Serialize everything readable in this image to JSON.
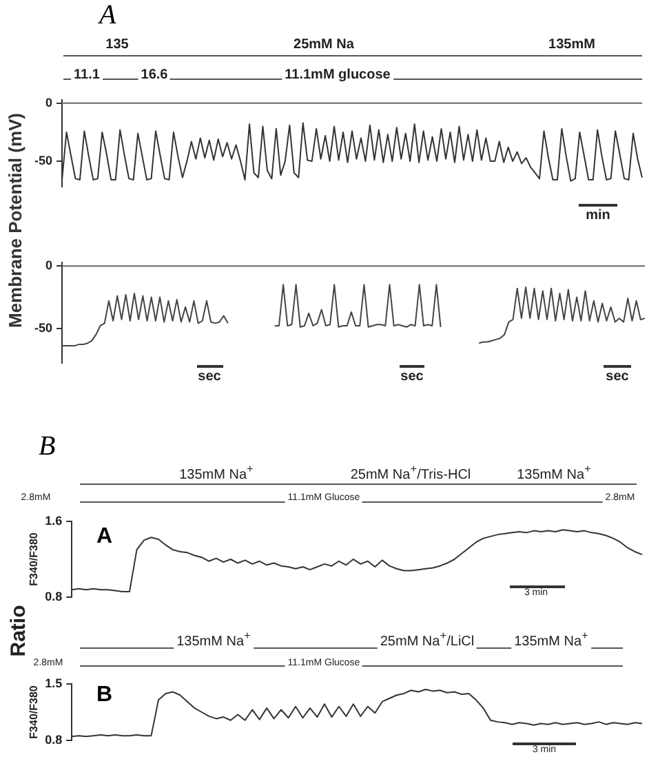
{
  "chart_data": [
    {
      "type": "line",
      "title": "A",
      "ylabel": "Membrane Potential (mV)",
      "annotations": [
        "135",
        "25mM Na",
        "135mM",
        "11.1",
        "16.6",
        "11.1mM glucose",
        "min"
      ],
      "ylim": [
        -72,
        3
      ],
      "yticks": [
        0,
        -50
      ],
      "tick_labels": "y",
      "ref_lines": [
        {
          "axis": "y",
          "value": 0
        }
      ],
      "categories": [
        null,
        null,
        null,
        null,
        null,
        null,
        null,
        null,
        null,
        null,
        null,
        null,
        null,
        null,
        null,
        null,
        null,
        null,
        null,
        null,
        null,
        null,
        null,
        null,
        null,
        null,
        null,
        null,
        null,
        null,
        null,
        null,
        null,
        null,
        null,
        null,
        null,
        null,
        null,
        null,
        null,
        null,
        null,
        null,
        null,
        null,
        null,
        null,
        null,
        null,
        null,
        null,
        null,
        null,
        null,
        null,
        null,
        null,
        null,
        null,
        null,
        null,
        null,
        null,
        null,
        null,
        null,
        null,
        null,
        null,
        null,
        null,
        null,
        null,
        null,
        null,
        null,
        null,
        null,
        null,
        null,
        null,
        null,
        null,
        null,
        null,
        null,
        null,
        null,
        null,
        null,
        null,
        null,
        null,
        null,
        null,
        null,
        null,
        null,
        null,
        null,
        null,
        null,
        null,
        null,
        null,
        null,
        null,
        null,
        null,
        null,
        null,
        null,
        null,
        null,
        null,
        null,
        null,
        null,
        null,
        null,
        null,
        null,
        null,
        null,
        null,
        null,
        null,
        null,
        null,
        null
      ],
      "series": [
        {
          "color": "#333333",
          "values": [
            -66,
            -25,
            -45,
            -65,
            -66,
            -24,
            -46,
            -66,
            -65,
            -25,
            -44,
            -66,
            -66,
            -23,
            -45,
            -65,
            -66,
            -26,
            -46,
            -66,
            -65,
            -24,
            -45,
            -65,
            -66,
            -25,
            -46,
            -64,
            -50,
            -33,
            -48,
            -30,
            -47,
            -32,
            -49,
            -31,
            -46,
            -34,
            -48,
            -36,
            -50,
            -66,
            -18,
            -60,
            -64,
            -20,
            -58,
            -65,
            -22,
            -62,
            -50,
            -19,
            -60,
            -64,
            -17,
            -49,
            -50,
            -22,
            -48,
            -28,
            -50,
            -20,
            -49,
            -25,
            -51,
            -24,
            -48,
            -30,
            -50,
            -19,
            -49,
            -23,
            -51,
            -27,
            -50,
            -21,
            -48,
            -26,
            -50,
            -18,
            -51,
            -24,
            -49,
            -29,
            -50,
            -22,
            -48,
            -25,
            -51,
            -20,
            -49,
            -27,
            -50,
            -23,
            -49,
            -30,
            -50,
            -50,
            -33,
            -51,
            -38,
            -50,
            -42,
            -52,
            -47,
            -55,
            -60,
            -65,
            -24,
            -47,
            -66,
            -66,
            -22,
            -46,
            -67,
            -65,
            -25,
            -45,
            -66,
            -66,
            -23,
            -46,
            -66,
            -65,
            -24,
            -44,
            -65,
            -66,
            -26,
            -48,
            -64
          ]
        }
      ]
    },
    {
      "type": "line",
      "annotations": [
        "sec",
        "sec",
        "sec"
      ],
      "ylim": [
        -78,
        3
      ],
      "yticks": [
        0,
        -50
      ],
      "tick_labels": "y",
      "ref_lines": [
        {
          "axis": "y",
          "value": 0
        }
      ],
      "categories": [
        null,
        null,
        null,
        null,
        null,
        null,
        null,
        null,
        null,
        null,
        null,
        null,
        null,
        null,
        null,
        null,
        null,
        null,
        null,
        null,
        null,
        null,
        null,
        null,
        null,
        null,
        null,
        null,
        null,
        null,
        null,
        null,
        null,
        null,
        null,
        null,
        null,
        null,
        null,
        null,
        null,
        null,
        null,
        null,
        null,
        null,
        null,
        null,
        null,
        null,
        null,
        null,
        null,
        null,
        null,
        null,
        null,
        null,
        null,
        null,
        null,
        null,
        null,
        null,
        null,
        null,
        null,
        null,
        null,
        null,
        null,
        null,
        null,
        null,
        null,
        null,
        null,
        null,
        null,
        null,
        null,
        null,
        null,
        null,
        null,
        null,
        null,
        null,
        null,
        null,
        null,
        null,
        null,
        null,
        null,
        null,
        null,
        null,
        null,
        null,
        null,
        null,
        null,
        null,
        null,
        null,
        null,
        null,
        null,
        null,
        null,
        null,
        null,
        null,
        null,
        null,
        null,
        null,
        null,
        null,
        null,
        null,
        null,
        null,
        null,
        null,
        null,
        null,
        null,
        null,
        null,
        null,
        null,
        null,
        null,
        null,
        null,
        null
      ],
      "series": [
        {
          "color": "#444444",
          "values": [
            -64,
            -64,
            -64,
            -64,
            -63,
            -63,
            -62,
            -60,
            -55,
            -48,
            -46,
            -28,
            -44,
            -24,
            -43,
            -23,
            -44,
            -22,
            -43,
            -24,
            -44,
            -25,
            -44,
            -25,
            -45,
            -28,
            -44,
            -27,
            -45,
            -33,
            -45,
            -28,
            -46,
            -44,
            -28,
            -45,
            -46,
            -45,
            -40,
            -46,
            null,
            null,
            null,
            null,
            null,
            null,
            null,
            null,
            null,
            null,
            null,
            null,
            null,
            null,
            null,
            null,
            null,
            null,
            null,
            null,
            null,
            null,
            null,
            null,
            null,
            null,
            null,
            null,
            null,
            null,
            null,
            null,
            null,
            null,
            null,
            null,
            null,
            null,
            null,
            null,
            null,
            null,
            null,
            null,
            null,
            null,
            null,
            null,
            null,
            null,
            null,
            null,
            null,
            null,
            null,
            null,
            null,
            null,
            null,
            null,
            null,
            null,
            null,
            null,
            null,
            null,
            null,
            null,
            null,
            null,
            null,
            null,
            null,
            null,
            null,
            null,
            null,
            null,
            null,
            null,
            null,
            null,
            null,
            null,
            null,
            null,
            null,
            null,
            null,
            null,
            null,
            null,
            null,
            null,
            null,
            null,
            null,
            null
          ]
        },
        {
          "color": "#444444",
          "values": [
            null,
            null,
            null,
            null,
            null,
            null,
            null,
            null,
            null,
            null,
            null,
            null,
            null,
            null,
            null,
            null,
            null,
            null,
            null,
            null,
            null,
            null,
            null,
            null,
            null,
            null,
            null,
            null,
            null,
            null,
            null,
            null,
            null,
            null,
            null,
            null,
            null,
            null,
            null,
            null,
            null,
            null,
            null,
            null,
            null,
            null,
            null,
            null,
            null,
            null,
            -48,
            -48,
            -15,
            -48,
            -47,
            -15,
            -49,
            -48,
            -38,
            -48,
            -46,
            -35,
            -48,
            -47,
            -15,
            -49,
            -48,
            -48,
            -37,
            -48,
            -48,
            -15,
            -49,
            -48,
            -47,
            -47,
            -48,
            -15,
            -48,
            -47,
            -48,
            -49,
            -47,
            -48,
            -15,
            -48,
            -47,
            -48,
            -15,
            -49,
            null,
            null,
            null,
            null,
            null,
            null,
            null,
            null,
            null,
            null,
            null,
            null,
            null,
            null,
            null,
            null,
            null,
            null,
            null,
            null,
            null,
            null,
            null,
            null,
            null,
            null,
            null,
            null,
            null,
            null,
            null,
            null,
            null,
            null,
            null,
            null,
            null,
            null,
            null,
            null,
            null,
            null,
            null,
            null,
            null,
            null,
            null,
            null
          ]
        },
        {
          "color": "#444444",
          "values": [
            null,
            null,
            null,
            null,
            null,
            null,
            null,
            null,
            null,
            null,
            null,
            null,
            null,
            null,
            null,
            null,
            null,
            null,
            null,
            null,
            null,
            null,
            null,
            null,
            null,
            null,
            null,
            null,
            null,
            null,
            null,
            null,
            null,
            null,
            null,
            null,
            null,
            null,
            null,
            null,
            null,
            null,
            null,
            null,
            null,
            null,
            null,
            null,
            null,
            null,
            null,
            null,
            null,
            null,
            null,
            null,
            null,
            null,
            null,
            null,
            null,
            null,
            null,
            null,
            null,
            null,
            null,
            null,
            null,
            null,
            null,
            null,
            null,
            null,
            null,
            null,
            null,
            null,
            null,
            null,
            null,
            null,
            null,
            null,
            null,
            null,
            null,
            null,
            null,
            null,
            null,
            null,
            null,
            null,
            null,
            null,
            null,
            null,
            -62,
            -61,
            -61,
            -60,
            -59,
            -58,
            -55,
            -45,
            -43,
            -18,
            -42,
            -17,
            -42,
            -18,
            -43,
            -20,
            -43,
            -18,
            -44,
            -22,
            -43,
            -19,
            -44,
            -25,
            -44,
            -20,
            -44,
            -28,
            -45,
            -30,
            -44,
            -33,
            -45,
            -42,
            -45,
            -26,
            -44,
            -28,
            -43,
            -42
          ]
        }
      ]
    },
    {
      "type": "line",
      "title": "B",
      "subtitle": "A",
      "ylabel": "F340/F380",
      "annotations": [
        "135mM Na$^{+}$",
        "25mM Na$^{+}$/Tris-HCl",
        "135mM Na$^{+}$",
        "2.8mM",
        "11.1mM Glucose",
        "2.8mM",
        "3 min",
        "Ratio"
      ],
      "ylim": [
        0.8,
        1.6
      ],
      "yticks": [
        0.8,
        1.6
      ],
      "tick_labels": "y",
      "categories": [
        null,
        null,
        null,
        null,
        null,
        null,
        null,
        null,
        null,
        null,
        null,
        null,
        null,
        null,
        null,
        null,
        null,
        null,
        null,
        null,
        null,
        null,
        null,
        null,
        null,
        null,
        null,
        null,
        null,
        null,
        null,
        null,
        null,
        null,
        null,
        null,
        null,
        null,
        null,
        null,
        null,
        null,
        null,
        null,
        null,
        null,
        null,
        null,
        null,
        null,
        null,
        null,
        null,
        null,
        null,
        null,
        null,
        null,
        null,
        null,
        null,
        null,
        null,
        null,
        null,
        null,
        null,
        null,
        null,
        null,
        null,
        null,
        null,
        null,
        null,
        null,
        null,
        null,
        null,
        null
      ],
      "series": [
        {
          "color": "#333333",
          "values": [
            0.88,
            0.89,
            0.88,
            0.89,
            0.88,
            0.88,
            0.87,
            0.86,
            0.86,
            1.3,
            1.4,
            1.43,
            1.41,
            1.35,
            1.3,
            1.28,
            1.27,
            1.24,
            1.22,
            1.18,
            1.21,
            1.17,
            1.2,
            1.16,
            1.19,
            1.15,
            1.18,
            1.14,
            1.16,
            1.13,
            1.12,
            1.1,
            1.12,
            1.09,
            1.12,
            1.15,
            1.13,
            1.18,
            1.14,
            1.2,
            1.15,
            1.18,
            1.12,
            1.19,
            1.13,
            1.1,
            1.08,
            1.08,
            1.09,
            1.1,
            1.11,
            1.13,
            1.16,
            1.2,
            1.26,
            1.32,
            1.38,
            1.42,
            1.44,
            1.46,
            1.47,
            1.48,
            1.49,
            1.48,
            1.5,
            1.49,
            1.5,
            1.49,
            1.51,
            1.5,
            1.49,
            1.5,
            1.48,
            1.47,
            1.45,
            1.42,
            1.38,
            1.32,
            1.28,
            1.25
          ]
        }
      ]
    },
    {
      "type": "line",
      "title": "B",
      "ylabel": "F340/F380",
      "annotations": [
        "135mM Na$^{+}$",
        "25mM Na$^{+}$/LiCl",
        "135mM Na$^{+}$",
        "2.8mM",
        "11.1mM Glucose",
        "3 min"
      ],
      "ylim": [
        0.8,
        1.5
      ],
      "yticks": [
        0.8,
        1.5
      ],
      "tick_labels": "y",
      "categories": [
        null,
        null,
        null,
        null,
        null,
        null,
        null,
        null,
        null,
        null,
        null,
        null,
        null,
        null,
        null,
        null,
        null,
        null,
        null,
        null,
        null,
        null,
        null,
        null,
        null,
        null,
        null,
        null,
        null,
        null,
        null,
        null,
        null,
        null,
        null,
        null,
        null,
        null,
        null,
        null,
        null,
        null,
        null,
        null,
        null,
        null,
        null,
        null,
        null,
        null,
        null,
        null,
        null,
        null,
        null,
        null,
        null,
        null,
        null,
        null,
        null,
        null,
        null,
        null,
        null,
        null,
        null,
        null,
        null,
        null,
        null,
        null,
        null,
        null,
        null,
        null,
        null,
        null,
        null,
        null
      ],
      "series": [
        {
          "color": "#333333",
          "values": [
            0.85,
            0.86,
            0.85,
            0.86,
            0.87,
            0.86,
            0.87,
            0.86,
            0.86,
            0.87,
            0.86,
            0.86,
            1.3,
            1.38,
            1.4,
            1.36,
            1.28,
            1.2,
            1.15,
            1.1,
            1.07,
            1.09,
            1.05,
            1.12,
            1.05,
            1.18,
            1.06,
            1.2,
            1.07,
            1.18,
            1.08,
            1.22,
            1.08,
            1.2,
            1.09,
            1.25,
            1.09,
            1.22,
            1.1,
            1.25,
            1.1,
            1.22,
            1.14,
            1.28,
            1.32,
            1.36,
            1.38,
            1.42,
            1.4,
            1.43,
            1.41,
            1.42,
            1.39,
            1.4,
            1.37,
            1.38,
            1.3,
            1.2,
            1.05,
            1.03,
            1.02,
            1.0,
            1.02,
            1.01,
            0.99,
            1.01,
            1.0,
            1.02,
            1.0,
            1.01,
            1.02,
            1.0,
            1.01,
            1.03,
            1.0,
            1.02,
            1.01,
            1.0,
            1.02,
            1.01
          ]
        }
      ]
    }
  ]
}
